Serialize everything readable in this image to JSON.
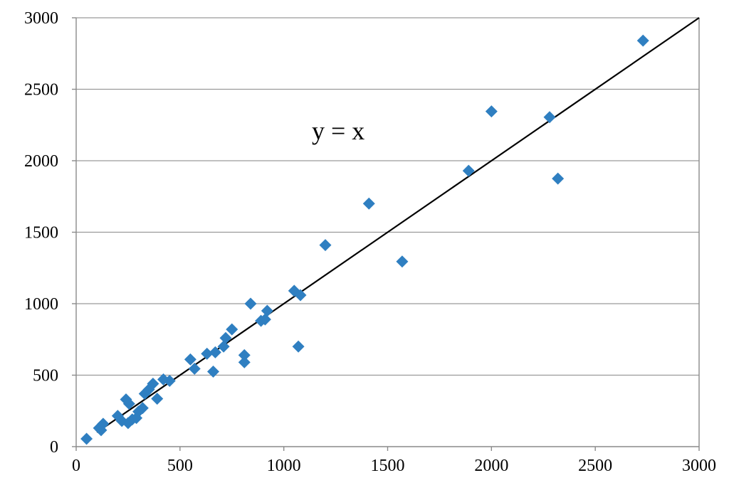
{
  "chart_data": {
    "type": "scatter",
    "title": "",
    "xlabel": "",
    "ylabel": "",
    "xlim": [
      0,
      3000
    ],
    "ylim": [
      0,
      3000
    ],
    "x_ticks": [
      "0",
      "500",
      "1000",
      "1500",
      "2000",
      "2500",
      "3000"
    ],
    "y_ticks": [
      "0",
      "500",
      "1000",
      "1500",
      "2000",
      "2500",
      "3000"
    ],
    "grid": "horizontal",
    "annotation": "y = x",
    "reference_line": {
      "name": "y = x",
      "from": [
        100,
        100
      ],
      "to": [
        3000,
        3000
      ],
      "color": "#000000"
    },
    "marker": "diamond",
    "series": [
      {
        "color": "#2f7fc1",
        "points": [
          [
            50,
            55
          ],
          [
            110,
            130
          ],
          [
            120,
            115
          ],
          [
            130,
            160
          ],
          [
            200,
            215
          ],
          [
            220,
            180
          ],
          [
            240,
            330
          ],
          [
            250,
            165
          ],
          [
            255,
            300
          ],
          [
            270,
            190
          ],
          [
            290,
            200
          ],
          [
            300,
            245
          ],
          [
            320,
            270
          ],
          [
            330,
            370
          ],
          [
            350,
            400
          ],
          [
            370,
            440
          ],
          [
            390,
            335
          ],
          [
            420,
            470
          ],
          [
            450,
            460
          ],
          [
            550,
            610
          ],
          [
            570,
            545
          ],
          [
            630,
            650
          ],
          [
            660,
            525
          ],
          [
            670,
            660
          ],
          [
            710,
            700
          ],
          [
            720,
            760
          ],
          [
            750,
            820
          ],
          [
            810,
            640
          ],
          [
            810,
            590
          ],
          [
            840,
            1000
          ],
          [
            890,
            880
          ],
          [
            910,
            890
          ],
          [
            920,
            950
          ],
          [
            1050,
            1090
          ],
          [
            1080,
            1060
          ],
          [
            1070,
            700
          ],
          [
            1200,
            1410
          ],
          [
            1410,
            1700
          ],
          [
            1570,
            1295
          ],
          [
            1890,
            1930
          ],
          [
            2000,
            2345
          ],
          [
            2280,
            2305
          ],
          [
            2320,
            1875
          ],
          [
            2730,
            2840
          ]
        ]
      }
    ]
  }
}
